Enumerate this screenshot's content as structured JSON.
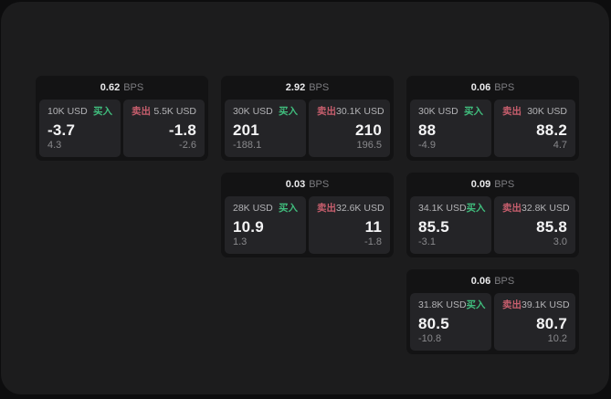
{
  "labels": {
    "buy": "买入",
    "sell": "卖出",
    "bps": "BPS"
  },
  "colors": {
    "buy_green": "#40bd7d",
    "sell_red": "#c75e6d",
    "card_bg": "#131314",
    "panel_bg": "#242427",
    "app_bg": "#1c1c1d"
  },
  "cards": [
    {
      "bps": "0.62",
      "buy": {
        "amount": "10K USD",
        "value": "-3.7",
        "delta": "4.3"
      },
      "sell": {
        "amount": "5.5K USD",
        "value": "-1.8",
        "delta": "-2.6"
      }
    },
    {
      "bps": "2.92",
      "buy": {
        "amount": "30K USD",
        "value": "201",
        "delta": "-188.1"
      },
      "sell": {
        "amount": "30.1K USD",
        "value": "210",
        "delta": "196.5"
      }
    },
    {
      "bps": "0.06",
      "buy": {
        "amount": "30K USD",
        "value": "88",
        "delta": "-4.9"
      },
      "sell": {
        "amount": "30K USD",
        "value": "88.2",
        "delta": "4.7"
      }
    },
    {
      "bps": "0.03",
      "buy": {
        "amount": "28K USD",
        "value": "10.9",
        "delta": "1.3"
      },
      "sell": {
        "amount": "32.6K USD",
        "value": "11",
        "delta": "-1.8"
      }
    },
    {
      "bps": "0.09",
      "buy": {
        "amount": "34.1K USD",
        "value": "85.5",
        "delta": "-3.1"
      },
      "sell": {
        "amount": "32.8K USD",
        "value": "85.8",
        "delta": "3.0"
      }
    },
    {
      "bps": "0.06",
      "buy": {
        "amount": "31.8K USD",
        "value": "80.5",
        "delta": "-10.8"
      },
      "sell": {
        "amount": "39.1K USD",
        "value": "80.7",
        "delta": "10.2"
      }
    }
  ]
}
